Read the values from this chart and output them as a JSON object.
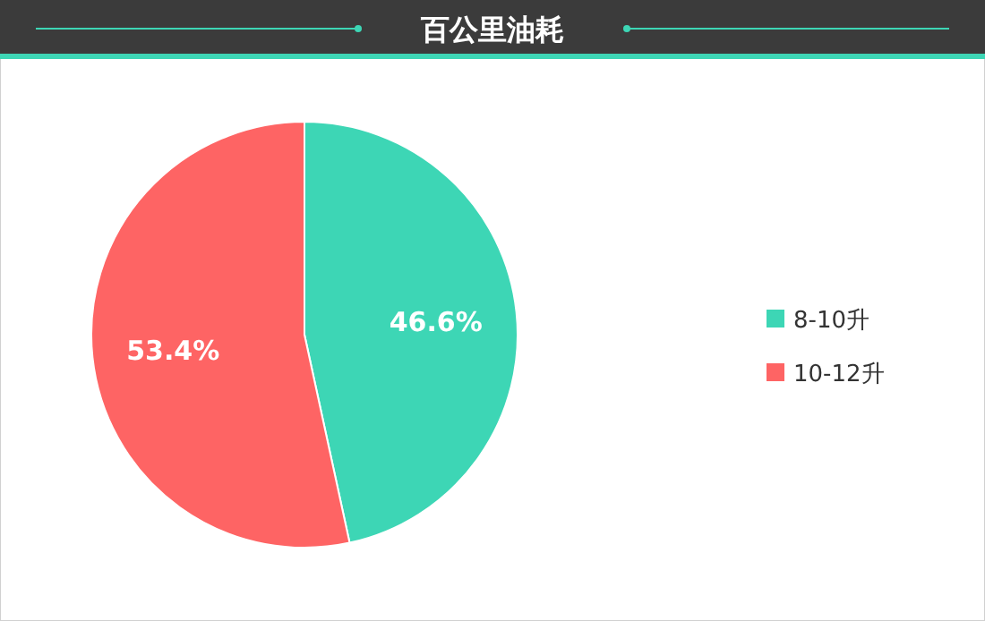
{
  "chart_data": {
    "type": "pie",
    "title": "百公里油耗",
    "categories": [
      "8-10升",
      "10-12升"
    ],
    "values": [
      46.6,
      53.4
    ],
    "colors": [
      "#3dd6b5",
      "#fe6464"
    ],
    "value_labels": [
      "46.6%",
      "53.4%"
    ],
    "legend": "right"
  }
}
